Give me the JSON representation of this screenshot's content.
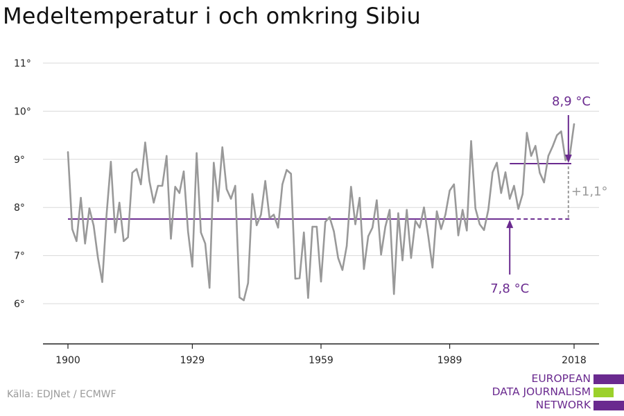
{
  "title": "Medeltemperatur i och omkring Sibiu",
  "source": "Källa: EDJNet / ECMWF",
  "logo": {
    "lines": [
      "EUROPEAN",
      "DATA JOURNALISM",
      "NETWORK"
    ],
    "color_purple": "#6a2a8f",
    "color_green": "#9bd12b"
  },
  "colors": {
    "series": "#999999",
    "accent": "#6a2a8f",
    "grid": "#d9d9d9",
    "axis": "#222222",
    "difference": "#9a9a9a"
  },
  "chart_data": {
    "type": "line",
    "title": "Medeltemperatur i och omkring Sibiu",
    "xlabel": "",
    "ylabel": "",
    "xlim": [
      1900,
      2018
    ],
    "ylim": [
      5.1,
      11.2
    ],
    "y_ticks": [
      6,
      7,
      8,
      9,
      10,
      11
    ],
    "y_tick_labels": [
      "6°",
      "7°",
      "8°",
      "9°",
      "10°",
      "11°"
    ],
    "x_ticks": [
      1900,
      1929,
      1959,
      1989,
      2018
    ],
    "x_tick_labels": [
      "1900",
      "1929",
      "1959",
      "1989",
      "2018"
    ],
    "grid": true,
    "legend": "none",
    "series": [
      {
        "x": [
          1900,
          1901,
          1902,
          1903,
          1904,
          1905,
          1906,
          1907,
          1908,
          1909,
          1910,
          1911,
          1912,
          1913,
          1914,
          1915,
          1916,
          1917,
          1918,
          1919,
          1920,
          1921,
          1922,
          1923,
          1924,
          1925,
          1926,
          1927,
          1928,
          1929,
          1930,
          1931,
          1932,
          1933,
          1934,
          1935,
          1936,
          1937,
          1938,
          1939,
          1940,
          1941,
          1942,
          1943,
          1944,
          1945,
          1946,
          1947,
          1948,
          1949,
          1950,
          1951,
          1952,
          1953,
          1954,
          1955,
          1956,
          1957,
          1958,
          1959,
          1960,
          1961,
          1962,
          1963,
          1964,
          1965,
          1966,
          1967,
          1968,
          1969,
          1970,
          1971,
          1972,
          1973,
          1974,
          1975,
          1976,
          1977,
          1978,
          1979,
          1980,
          1981,
          1982,
          1983,
          1984,
          1985,
          1986,
          1987,
          1988,
          1989,
          1990,
          1991,
          1992,
          1993,
          1994,
          1995,
          1996,
          1997,
          1998,
          1999,
          2000,
          2001,
          2002,
          2003,
          2004,
          2005,
          2006,
          2007,
          2008,
          2009,
          2010,
          2011,
          2012,
          2013,
          2014,
          2015,
          2016,
          2017,
          2018
        ],
        "values": [
          9.15,
          7.55,
          7.3,
          8.2,
          7.25,
          7.98,
          7.62,
          6.95,
          6.45,
          7.85,
          8.95,
          7.48,
          8.1,
          7.3,
          7.38,
          8.72,
          8.8,
          8.48,
          9.35,
          8.55,
          8.1,
          8.45,
          8.45,
          9.07,
          7.35,
          8.43,
          8.3,
          8.75,
          7.5,
          6.77,
          9.13,
          7.48,
          7.25,
          6.33,
          8.93,
          8.13,
          9.25,
          8.38,
          8.18,
          8.45,
          6.13,
          6.07,
          6.43,
          8.28,
          7.63,
          7.85,
          8.55,
          7.78,
          7.85,
          7.58,
          8.48,
          8.78,
          8.7,
          6.52,
          6.53,
          7.48,
          6.12,
          7.6,
          7.6,
          6.46,
          7.7,
          7.8,
          7.5,
          6.95,
          6.7,
          7.2,
          8.43,
          7.65,
          8.2,
          6.72,
          7.4,
          7.58,
          8.15,
          7.02,
          7.6,
          7.95,
          6.2,
          7.88,
          6.9,
          7.95,
          6.95,
          7.72,
          7.58,
          8.0,
          7.4,
          6.75,
          7.92,
          7.55,
          7.85,
          8.35,
          8.48,
          7.42,
          7.95,
          7.52,
          9.38,
          7.98,
          7.65,
          7.53,
          7.95,
          8.73,
          8.93,
          8.3,
          8.73,
          8.18,
          8.45,
          7.97,
          8.28,
          9.55,
          9.07,
          9.28,
          8.72,
          8.52,
          9.07,
          9.27,
          9.5,
          9.58,
          8.98,
          9.08,
          9.73
        ]
      }
    ],
    "reference_lines": [
      {
        "label": "7,8 °C",
        "value": 7.76,
        "x_start": 1900,
        "x_end": 2018,
        "dashed_from": 2003
      },
      {
        "label": "8,9 °C",
        "value": 8.91,
        "x_start": 2003,
        "x_end": 2018
      }
    ],
    "annotations": {
      "baseline_label": "7,8 °C",
      "recent_label": "8,9 °C",
      "difference_label": "+1,1°"
    }
  }
}
